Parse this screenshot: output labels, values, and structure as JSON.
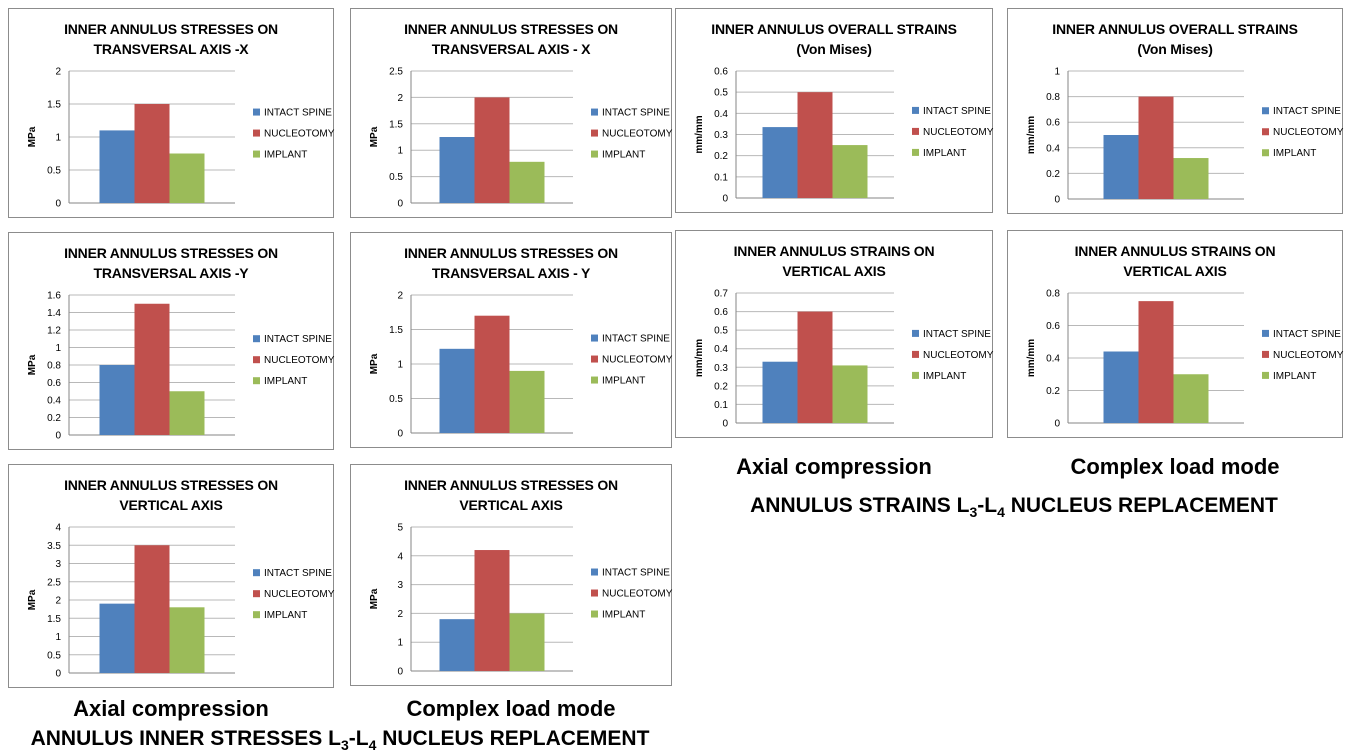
{
  "colors": {
    "intact": "#4f81bd",
    "nucleotomy": "#c0504d",
    "implant": "#9bbb59"
  },
  "legend": [
    "INTACT SPINE",
    "NUCLEOTOMY",
    "IMPLANT"
  ],
  "labels": {
    "stress_axial": "Axial compression",
    "stress_complex": "Complex load mode",
    "stress_caption_a": "ANNULUS INNER STRESSES L",
    "stress_caption_sub1": "3",
    "stress_caption_b": "-L",
    "stress_caption_sub2": "4",
    "stress_caption_c": " NUCLEUS REPLACEMENT",
    "strain_axial": "Axial compression",
    "strain_complex": "Complex load mode",
    "strain_caption_a": "ANNULUS STRAINS  L",
    "strain_caption_sub1": "3",
    "strain_caption_b": "-L",
    "strain_caption_sub2": "4",
    "strain_caption_c": " NUCLEUS REPLACEMENT"
  },
  "chart_data": [
    {
      "type": "bar",
      "title": "INNER ANNULUS STRESSES ON\nTRANSVERSAL AXIS -X",
      "ylabel": "MPa",
      "series": [
        {
          "name": "INTACT SPINE",
          "values": [
            1.1
          ]
        },
        {
          "name": "NUCLEOTOMY",
          "values": [
            1.5
          ]
        },
        {
          "name": "IMPLANT",
          "values": [
            0.75
          ]
        }
      ],
      "ylim": [
        0,
        2
      ],
      "ticks": [
        "0",
        "0.5",
        "1",
        "1.5",
        "2"
      ]
    },
    {
      "type": "bar",
      "title": "INNER ANNULUS STRESSES ON\nTRANSVERSAL AXIS - X",
      "ylabel": "MPa",
      "series": [
        {
          "name": "INTACT SPINE",
          "values": [
            1.25
          ]
        },
        {
          "name": "NUCLEOTOMY",
          "values": [
            2.0
          ]
        },
        {
          "name": "IMPLANT",
          "values": [
            0.78
          ]
        }
      ],
      "ylim": [
        0,
        2.5
      ],
      "ticks": [
        "0",
        "0.5",
        "1",
        "1.5",
        "2",
        "2.5"
      ]
    },
    {
      "type": "bar",
      "title": "INNER ANNULUS  OVERALL STRAINS\n(Von Mises)",
      "ylabel": "mm/mm",
      "series": [
        {
          "name": "INTACT SPINE",
          "values": [
            0.335
          ]
        },
        {
          "name": "NUCLEOTOMY",
          "values": [
            0.5
          ]
        },
        {
          "name": "IMPLANT",
          "values": [
            0.25
          ]
        }
      ],
      "ylim": [
        0,
        0.6
      ],
      "ticks": [
        "0",
        "0.1",
        "0.2",
        "0.3",
        "0.4",
        "0.5",
        "0.6"
      ]
    },
    {
      "type": "bar",
      "title": "INNER ANNULUS  OVERALL STRAINS\n(Von Mises)",
      "ylabel": "mm/mm",
      "series": [
        {
          "name": "INTACT SPINE",
          "values": [
            0.5
          ]
        },
        {
          "name": "NUCLEOTOMY",
          "values": [
            0.8
          ]
        },
        {
          "name": "IMPLANT",
          "values": [
            0.32
          ]
        }
      ],
      "ylim": [
        0,
        1
      ],
      "ticks": [
        "0",
        "0.2",
        "0.4",
        "0.6",
        "0.8",
        "1"
      ]
    },
    {
      "type": "bar",
      "title": "INNER ANNULUS STRESSES ON\nTRANSVERSAL AXIS -Y",
      "ylabel": "MPa",
      "series": [
        {
          "name": "INTACT SPINE",
          "values": [
            0.8
          ]
        },
        {
          "name": "NUCLEOTOMY",
          "values": [
            1.5
          ]
        },
        {
          "name": "IMPLANT",
          "values": [
            0.5
          ]
        }
      ],
      "ylim": [
        0,
        1.6
      ],
      "ticks": [
        "0",
        "0.2",
        "0.4",
        "0.6",
        "0.8",
        "1",
        "1.2",
        "1.4",
        "1.6"
      ]
    },
    {
      "type": "bar",
      "title": "INNER ANNULUS STRESSES ON\nTRANSVERSAL AXIS - Y",
      "ylabel": "MPa",
      "series": [
        {
          "name": "INTACT SPINE",
          "values": [
            1.22
          ]
        },
        {
          "name": "NUCLEOTOMY",
          "values": [
            1.7
          ]
        },
        {
          "name": "IMPLANT",
          "values": [
            0.9
          ]
        }
      ],
      "ylim": [
        0,
        2
      ],
      "ticks": [
        "0",
        "0.5",
        "1",
        "1.5",
        "2"
      ]
    },
    {
      "type": "bar",
      "title": "INNER ANNULUS STRAINS ON\nVERTICAL AXIS",
      "ylabel": "mm/mm",
      "series": [
        {
          "name": "INTACT SPINE",
          "values": [
            0.33
          ]
        },
        {
          "name": "NUCLEOTOMY",
          "values": [
            0.6
          ]
        },
        {
          "name": "IMPLANT",
          "values": [
            0.31
          ]
        }
      ],
      "ylim": [
        0,
        0.7
      ],
      "ticks": [
        "0",
        "0.1",
        "0.2",
        "0.3",
        "0.4",
        "0.5",
        "0.6",
        "0.7"
      ]
    },
    {
      "type": "bar",
      "title": "INNER  ANNULUS STRAINS ON\nVERTICAL AXIS",
      "ylabel": "mm/mm",
      "series": [
        {
          "name": "INTACT SPINE",
          "values": [
            0.44
          ]
        },
        {
          "name": "NUCLEOTOMY",
          "values": [
            0.75
          ]
        },
        {
          "name": "IMPLANT",
          "values": [
            0.3
          ]
        }
      ],
      "ylim": [
        0,
        0.8
      ],
      "ticks": [
        "0",
        "0.2",
        "0.4",
        "0.6",
        "0.8"
      ]
    },
    {
      "type": "bar",
      "title": "INNER ANNULUS STRESSES ON\nVERTICAL AXIS",
      "ylabel": "MPa",
      "series": [
        {
          "name": "INTACT SPINE",
          "values": [
            1.9
          ]
        },
        {
          "name": "NUCLEOTOMY",
          "values": [
            3.5
          ]
        },
        {
          "name": "IMPLANT",
          "values": [
            1.8
          ]
        }
      ],
      "ylim": [
        0,
        4
      ],
      "ticks": [
        "0",
        "0.5",
        "1",
        "1.5",
        "2",
        "2.5",
        "3",
        "3.5",
        "4"
      ]
    },
    {
      "type": "bar",
      "title": "INNER ANNULUS STRESSES ON\nVERTICAL AXIS",
      "ylabel": "MPa",
      "series": [
        {
          "name": "INTACT SPINE",
          "values": [
            1.8
          ]
        },
        {
          "name": "NUCLEOTOMY",
          "values": [
            4.2
          ]
        },
        {
          "name": "IMPLANT",
          "values": [
            2.0
          ]
        }
      ],
      "ylim": [
        0,
        5
      ],
      "ticks": [
        "0",
        "1",
        "2",
        "3",
        "4",
        "5"
      ]
    }
  ]
}
